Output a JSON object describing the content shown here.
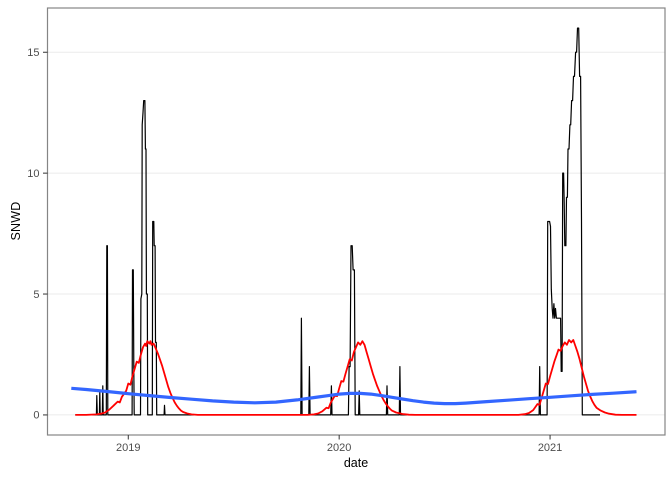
{
  "chart_data": {
    "type": "line",
    "title": "",
    "xlabel": "date",
    "ylabel": "SNWD",
    "xlim": [
      2018.617,
      2021.545
    ],
    "ylim": [
      -0.83,
      16.83
    ],
    "x_ticks": [
      2019,
      2020,
      2021
    ],
    "y_ticks": [
      0,
      5,
      10,
      15
    ],
    "grid": "horizontal-major-only",
    "legend": "none",
    "panel": {
      "background": "#FFFFFF",
      "border_color": "#858585",
      "gridline_color": "#EBEBEB",
      "tick_color": "#333333",
      "tick_label_color": "#4D4D4D",
      "axis_title_color": "#000000"
    },
    "series": [
      {
        "name": "black-raw-snwd",
        "color": "#000000",
        "width": 1.2,
        "points": [
          [
            2018.749,
            0
          ],
          [
            2018.849,
            0
          ],
          [
            2018.851,
            0.8
          ],
          [
            2018.853,
            0
          ],
          [
            2018.863,
            0
          ],
          [
            2018.865,
            1.0
          ],
          [
            2018.867,
            0
          ],
          [
            2018.877,
            0
          ],
          [
            2018.879,
            1.2
          ],
          [
            2018.881,
            0
          ],
          [
            2018.896,
            0
          ],
          [
            2018.898,
            7
          ],
          [
            2018.901,
            7
          ],
          [
            2018.903,
            0
          ],
          [
            2019.018,
            0
          ],
          [
            2019.02,
            6
          ],
          [
            2019.024,
            6
          ],
          [
            2019.026,
            2
          ],
          [
            2019.028,
            0
          ],
          [
            2019.058,
            0
          ],
          [
            2019.06,
            4.8
          ],
          [
            2019.064,
            5.0
          ],
          [
            2019.066,
            12
          ],
          [
            2019.07,
            12.5
          ],
          [
            2019.073,
            13
          ],
          [
            2019.079,
            13
          ],
          [
            2019.081,
            11
          ],
          [
            2019.084,
            11
          ],
          [
            2019.086,
            5
          ],
          [
            2019.09,
            5
          ],
          [
            2019.092,
            0
          ],
          [
            2019.114,
            0
          ],
          [
            2019.116,
            8
          ],
          [
            2019.121,
            8
          ],
          [
            2019.123,
            7
          ],
          [
            2019.127,
            7
          ],
          [
            2019.129,
            3
          ],
          [
            2019.133,
            3
          ],
          [
            2019.135,
            0
          ],
          [
            2019.17,
            0
          ],
          [
            2019.172,
            0.4
          ],
          [
            2019.174,
            0
          ],
          [
            2019.818,
            0
          ],
          [
            2019.821,
            4
          ],
          [
            2019.824,
            0
          ],
          [
            2019.856,
            0
          ],
          [
            2019.859,
            2
          ],
          [
            2019.862,
            0
          ],
          [
            2019.96,
            0
          ],
          [
            2019.963,
            1.2
          ],
          [
            2019.966,
            0
          ],
          [
            2020.044,
            0
          ],
          [
            2020.047,
            2
          ],
          [
            2020.052,
            2
          ],
          [
            2020.056,
            7
          ],
          [
            2020.062,
            7
          ],
          [
            2020.066,
            6
          ],
          [
            2020.072,
            6
          ],
          [
            2020.076,
            0
          ],
          [
            2020.092,
            0
          ],
          [
            2020.095,
            1
          ],
          [
            2020.098,
            0
          ],
          [
            2020.224,
            0
          ],
          [
            2020.227,
            1.2
          ],
          [
            2020.23,
            0
          ],
          [
            2020.285,
            0
          ],
          [
            2020.288,
            2
          ],
          [
            2020.291,
            0
          ],
          [
            2020.948,
            0
          ],
          [
            2020.951,
            2
          ],
          [
            2020.954,
            0
          ],
          [
            2020.986,
            0
          ],
          [
            2020.989,
            8
          ],
          [
            2020.998,
            8
          ],
          [
            2021.002,
            7.8
          ],
          [
            2021.006,
            5.2
          ],
          [
            2021.01,
            4.4
          ],
          [
            2021.014,
            4.0
          ],
          [
            2021.018,
            4.6
          ],
          [
            2021.022,
            4.0
          ],
          [
            2021.026,
            4.4
          ],
          [
            2021.03,
            4.0
          ],
          [
            2021.046,
            4.0
          ],
          [
            2021.05,
            4.0
          ],
          [
            2021.053,
            1.8
          ],
          [
            2021.057,
            1.8
          ],
          [
            2021.06,
            10
          ],
          [
            2021.064,
            10
          ],
          [
            2021.067,
            8.8
          ],
          [
            2021.07,
            7.0
          ],
          [
            2021.075,
            7.0
          ],
          [
            2021.078,
            9.0
          ],
          [
            2021.082,
            9.0
          ],
          [
            2021.085,
            11
          ],
          [
            2021.09,
            11
          ],
          [
            2021.094,
            12
          ],
          [
            2021.098,
            12
          ],
          [
            2021.102,
            13
          ],
          [
            2021.107,
            13
          ],
          [
            2021.111,
            14
          ],
          [
            2021.116,
            14
          ],
          [
            2021.121,
            15
          ],
          [
            2021.126,
            15
          ],
          [
            2021.13,
            16
          ],
          [
            2021.136,
            16
          ],
          [
            2021.14,
            14
          ],
          [
            2021.145,
            14
          ],
          [
            2021.149,
            8
          ],
          [
            2021.153,
            0
          ],
          [
            2021.237,
            0
          ]
        ]
      },
      {
        "name": "red-seasonal-smooth",
        "color": "#FF0000",
        "width": 1.8,
        "points": [
          [
            2018.749,
            0
          ],
          [
            2018.8,
            0
          ],
          [
            2018.85,
            0.02
          ],
          [
            2018.87,
            0.05
          ],
          [
            2018.89,
            0.1
          ],
          [
            2018.91,
            0.22
          ],
          [
            2018.93,
            0.38
          ],
          [
            2018.95,
            0.55
          ],
          [
            2018.96,
            0.52
          ],
          [
            2018.97,
            0.75
          ],
          [
            2018.99,
            1.0
          ],
          [
            2019.0,
            1.3
          ],
          [
            2019.01,
            1.25
          ],
          [
            2019.02,
            1.6
          ],
          [
            2019.03,
            1.9
          ],
          [
            2019.04,
            2.2
          ],
          [
            2019.05,
            2.15
          ],
          [
            2019.06,
            2.5
          ],
          [
            2019.07,
            2.8
          ],
          [
            2019.08,
            2.95
          ],
          [
            2019.085,
            2.85
          ],
          [
            2019.09,
            3.05
          ],
          [
            2019.1,
            2.95
          ],
          [
            2019.105,
            3.05
          ],
          [
            2019.11,
            2.9
          ],
          [
            2019.12,
            2.95
          ],
          [
            2019.13,
            2.75
          ],
          [
            2019.14,
            2.55
          ],
          [
            2019.15,
            2.3
          ],
          [
            2019.16,
            2.05
          ],
          [
            2019.17,
            1.75
          ],
          [
            2019.18,
            1.45
          ],
          [
            2019.19,
            1.15
          ],
          [
            2019.2,
            0.9
          ],
          [
            2019.21,
            0.7
          ],
          [
            2019.22,
            0.52
          ],
          [
            2019.23,
            0.38
          ],
          [
            2019.24,
            0.27
          ],
          [
            2019.25,
            0.18
          ],
          [
            2019.26,
            0.12
          ],
          [
            2019.28,
            0.06
          ],
          [
            2019.3,
            0.02
          ],
          [
            2019.33,
            0
          ],
          [
            2019.6,
            0
          ],
          [
            2019.85,
            0
          ],
          [
            2019.88,
            0.02
          ],
          [
            2019.9,
            0.06
          ],
          [
            2019.92,
            0.15
          ],
          [
            2019.94,
            0.3
          ],
          [
            2019.95,
            0.28
          ],
          [
            2019.96,
            0.5
          ],
          [
            2019.98,
            0.8
          ],
          [
            2019.99,
            0.78
          ],
          [
            2020.0,
            1.1
          ],
          [
            2020.01,
            1.4
          ],
          [
            2020.02,
            1.38
          ],
          [
            2020.03,
            1.7
          ],
          [
            2020.04,
            2.0
          ],
          [
            2020.05,
            2.3
          ],
          [
            2020.06,
            2.25
          ],
          [
            2020.07,
            2.6
          ],
          [
            2020.08,
            2.8
          ],
          [
            2020.09,
            3.0
          ],
          [
            2020.1,
            2.9
          ],
          [
            2020.11,
            3.05
          ],
          [
            2020.12,
            2.9
          ],
          [
            2020.13,
            2.6
          ],
          [
            2020.14,
            2.3
          ],
          [
            2020.15,
            2.0
          ],
          [
            2020.16,
            1.7
          ],
          [
            2020.17,
            1.45
          ],
          [
            2020.18,
            1.2
          ],
          [
            2020.19,
            1.0
          ],
          [
            2020.2,
            0.8
          ],
          [
            2020.21,
            0.62
          ],
          [
            2020.22,
            0.48
          ],
          [
            2020.23,
            0.36
          ],
          [
            2020.24,
            0.26
          ],
          [
            2020.25,
            0.18
          ],
          [
            2020.27,
            0.1
          ],
          [
            2020.3,
            0.04
          ],
          [
            2020.33,
            0.01
          ],
          [
            2020.36,
            0
          ],
          [
            2020.6,
            0
          ],
          [
            2020.85,
            0
          ],
          [
            2020.88,
            0.03
          ],
          [
            2020.9,
            0.08
          ],
          [
            2020.92,
            0.2
          ],
          [
            2020.94,
            0.45
          ],
          [
            2020.95,
            0.42
          ],
          [
            2020.96,
            0.7
          ],
          [
            2020.97,
            1.0
          ],
          [
            2020.98,
            1.3
          ],
          [
            2020.99,
            1.28
          ],
          [
            2021.0,
            1.6
          ],
          [
            2021.01,
            1.9
          ],
          [
            2021.02,
            2.2
          ],
          [
            2021.03,
            2.45
          ],
          [
            2021.04,
            2.7
          ],
          [
            2021.05,
            2.65
          ],
          [
            2021.06,
            2.85
          ],
          [
            2021.07,
            3.0
          ],
          [
            2021.08,
            2.9
          ],
          [
            2021.09,
            3.1
          ],
          [
            2021.1,
            3.0
          ],
          [
            2021.11,
            3.1
          ],
          [
            2021.12,
            2.85
          ],
          [
            2021.13,
            2.6
          ],
          [
            2021.14,
            2.3
          ],
          [
            2021.15,
            1.95
          ],
          [
            2021.16,
            1.6
          ],
          [
            2021.17,
            1.3
          ],
          [
            2021.18,
            1.0
          ],
          [
            2021.19,
            0.78
          ],
          [
            2021.2,
            0.58
          ],
          [
            2021.21,
            0.42
          ],
          [
            2021.22,
            0.3
          ],
          [
            2021.24,
            0.18
          ],
          [
            2021.26,
            0.1
          ],
          [
            2021.28,
            0.05
          ],
          [
            2021.31,
            0.01
          ],
          [
            2021.34,
            0
          ],
          [
            2021.41,
            0
          ]
        ]
      },
      {
        "name": "blue-trend-smooth",
        "color": "#3366FF",
        "width": 3.2,
        "points": [
          [
            2018.73,
            1.1
          ],
          [
            2018.8,
            1.05
          ],
          [
            2018.9,
            0.97
          ],
          [
            2019.0,
            0.88
          ],
          [
            2019.1,
            0.8
          ],
          [
            2019.2,
            0.72
          ],
          [
            2019.3,
            0.65
          ],
          [
            2019.4,
            0.58
          ],
          [
            2019.5,
            0.53
          ],
          [
            2019.6,
            0.5
          ],
          [
            2019.7,
            0.53
          ],
          [
            2019.8,
            0.62
          ],
          [
            2019.9,
            0.74
          ],
          [
            2019.95,
            0.8
          ],
          [
            2020.0,
            0.86
          ],
          [
            2020.05,
            0.89
          ],
          [
            2020.1,
            0.89
          ],
          [
            2020.15,
            0.86
          ],
          [
            2020.2,
            0.8
          ],
          [
            2020.25,
            0.73
          ],
          [
            2020.3,
            0.66
          ],
          [
            2020.35,
            0.59
          ],
          [
            2020.4,
            0.53
          ],
          [
            2020.45,
            0.49
          ],
          [
            2020.5,
            0.47
          ],
          [
            2020.55,
            0.47
          ],
          [
            2020.6,
            0.49
          ],
          [
            2020.65,
            0.52
          ],
          [
            2020.7,
            0.55
          ],
          [
            2020.8,
            0.61
          ],
          [
            2020.9,
            0.67
          ],
          [
            2021.0,
            0.73
          ],
          [
            2021.1,
            0.79
          ],
          [
            2021.2,
            0.85
          ],
          [
            2021.3,
            0.9
          ],
          [
            2021.41,
            0.96
          ]
        ]
      }
    ]
  }
}
